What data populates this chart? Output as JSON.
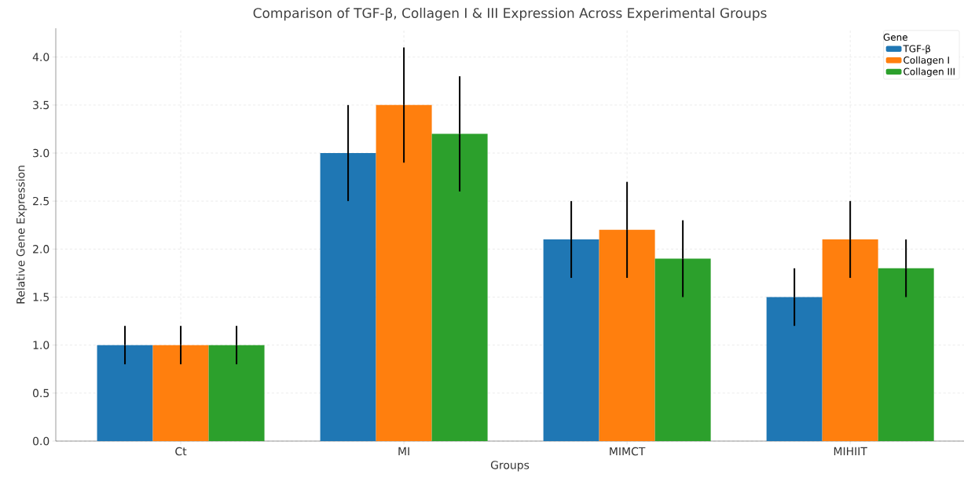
{
  "chart_data": {
    "type": "bar",
    "title": "Comparison of TGF-β, Collagen I & III Expression Across Experimental Groups",
    "xlabel": "Groups",
    "ylabel": "Relative Gene Expression",
    "legend_title": "Gene",
    "categories": [
      "Ct",
      "MI",
      "MIMCT",
      "MIHIIT"
    ],
    "series": [
      {
        "name": "TGF-β",
        "color": "#1f77b4",
        "values": [
          1.0,
          3.0,
          2.1,
          1.5
        ],
        "errors": [
          0.2,
          0.5,
          0.4,
          0.3
        ]
      },
      {
        "name": "Collagen I",
        "color": "#ff7f0e",
        "values": [
          1.0,
          3.5,
          2.2,
          2.1
        ],
        "errors": [
          0.2,
          0.6,
          0.5,
          0.4
        ]
      },
      {
        "name": "Collagen III",
        "color": "#2ca02c",
        "values": [
          1.0,
          3.2,
          1.9,
          1.8
        ],
        "errors": [
          0.2,
          0.6,
          0.4,
          0.3
        ]
      }
    ],
    "ylim": [
      0,
      4.3
    ],
    "yticks": [
      {
        "value": 0,
        "label": "0.0"
      },
      {
        "value": 0.5,
        "label": "0.5"
      },
      {
        "value": 1,
        "label": "1.0"
      },
      {
        "value": 1.5,
        "label": "1.5"
      },
      {
        "value": 2,
        "label": "2.0"
      },
      {
        "value": 2.5,
        "label": "2.5"
      },
      {
        "value": 3,
        "label": "3.0"
      },
      {
        "value": 3.5,
        "label": "3.5"
      },
      {
        "value": 4,
        "label": "4.0"
      }
    ],
    "grid": true,
    "legend": "top right"
  }
}
